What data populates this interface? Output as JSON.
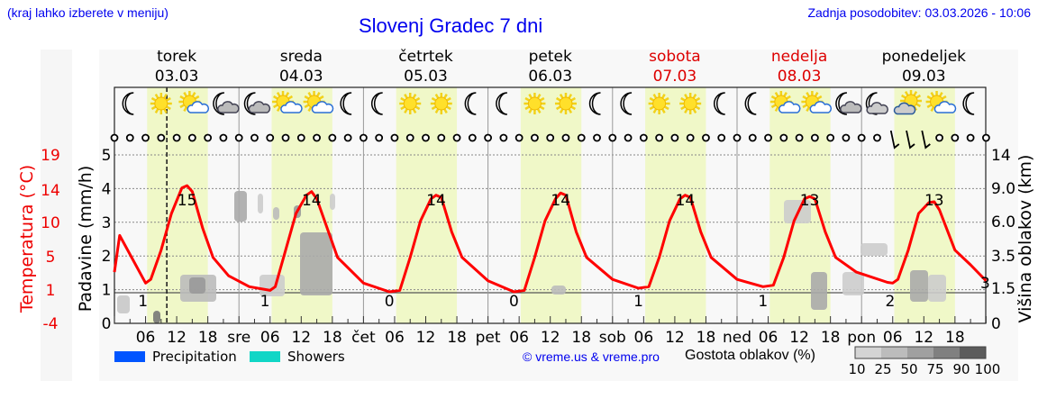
{
  "header": {
    "hint": "(kraj lahko izberete v meniju)",
    "title": "Slovenj Gradec 7 dni",
    "updated": "Zadnja posodobitev: 03.03.2026 - 10:06"
  },
  "days": [
    {
      "name": "torek",
      "date": "03.03",
      "weekend": false,
      "abbr": ""
    },
    {
      "name": "sreda",
      "date": "04.03",
      "weekend": false,
      "abbr": "sre"
    },
    {
      "name": "četrtek",
      "date": "05.03",
      "weekend": false,
      "abbr": "čet"
    },
    {
      "name": "petek",
      "date": "06.03",
      "weekend": false,
      "abbr": "pet"
    },
    {
      "name": "sobota",
      "date": "07.03",
      "weekend": true,
      "abbr": "sob"
    },
    {
      "name": "nedelja",
      "date": "08.03",
      "weekend": true,
      "abbr": "ned"
    },
    {
      "name": "ponedeljek",
      "date": "09.03",
      "weekend": false,
      "abbr": "pon"
    }
  ],
  "icons": [
    [
      "moon",
      "sun",
      "sun-cloud",
      "moon-cloud"
    ],
    [
      "moon-cloud",
      "sun-cloud",
      "sun-cloud",
      "moon"
    ],
    [
      "moon",
      "sun",
      "sun",
      "moon"
    ],
    [
      "moon",
      "sun",
      "sun",
      "moon"
    ],
    [
      "moon",
      "sun",
      "sun",
      "moon"
    ],
    [
      "moon",
      "sun-cloud",
      "sun-cloud",
      "moon-cloud"
    ],
    [
      "moon-cloud-heavy",
      "sun-cloud-heavy",
      "sun-cloud",
      "moon"
    ]
  ],
  "axes": {
    "left_temp_label": "Temperatura (°C)",
    "left_temp_ticks": [
      "19",
      "14",
      "10",
      "5",
      "1",
      "-4"
    ],
    "left_precip_label": "Padavine (mm/h)",
    "left_precip_ticks": [
      "0",
      "1",
      "2",
      "3",
      "4",
      "5"
    ],
    "right_label": "Višina oblakov (km)",
    "right_ticks": [
      "0",
      "1.5",
      "3.5",
      "6.0",
      "9.0",
      "14"
    ],
    "hour_ticks": [
      "06",
      "12",
      "18"
    ]
  },
  "legend": {
    "precipitation": "Precipitation",
    "showers": "Showers",
    "precip_color": "#0055ff",
    "showers_color": "#11d6c6",
    "copyright": "© vreme.us & vreme.pro",
    "cloud_density_label": "Gostota oblakov (%)",
    "cloud_density_ticks": [
      "10",
      "25",
      "50",
      "75",
      "90",
      "100"
    ]
  },
  "chart_data": {
    "type": "line",
    "title": "Slovenj Gradec 7 dni",
    "xlabel": "",
    "ylabel": "Temperatura (°C)",
    "ylim": [
      -4,
      19
    ],
    "secondary_axes": {
      "precipitation_mm_h": [
        0,
        5
      ],
      "cloud_height_km": [
        0,
        1.5,
        3.5,
        6.0,
        9.0,
        14
      ]
    },
    "now_marker": "03.03 10:06",
    "series": [
      {
        "name": "Temperatura",
        "color": "#ff0000",
        "points_hours_from_start": [
          [
            0,
            3
          ],
          [
            1,
            8
          ],
          [
            6,
            1.5
          ],
          [
            7,
            2
          ],
          [
            9,
            6
          ],
          [
            11,
            11
          ],
          [
            13,
            14.5
          ],
          [
            14,
            14.8
          ],
          [
            15,
            14
          ],
          [
            17,
            9
          ],
          [
            19,
            5
          ],
          [
            22,
            2.5
          ],
          [
            26,
            1
          ],
          [
            30,
            0.5
          ],
          [
            31,
            1
          ],
          [
            33,
            6
          ],
          [
            35,
            11
          ],
          [
            37,
            13.5
          ],
          [
            38,
            14
          ],
          [
            39,
            13
          ],
          [
            41,
            9
          ],
          [
            43,
            5
          ],
          [
            48,
            1.5
          ],
          [
            53,
            0.3
          ],
          [
            55,
            0.5
          ],
          [
            57,
            5
          ],
          [
            59,
            10
          ],
          [
            61,
            13
          ],
          [
            62,
            13.5
          ],
          [
            63,
            13.2
          ],
          [
            65,
            8.5
          ],
          [
            67,
            5
          ],
          [
            72,
            1.8
          ],
          [
            77,
            0.3
          ],
          [
            79,
            0.5
          ],
          [
            81,
            5
          ],
          [
            83,
            10
          ],
          [
            85,
            13
          ],
          [
            86,
            13.8
          ],
          [
            87,
            13.5
          ],
          [
            89,
            8.5
          ],
          [
            91,
            5
          ],
          [
            96,
            2
          ],
          [
            101,
            0.8
          ],
          [
            103,
            1
          ],
          [
            105,
            5
          ],
          [
            107,
            10
          ],
          [
            109,
            13
          ],
          [
            110,
            13.5
          ],
          [
            111,
            13.2
          ],
          [
            113,
            8.5
          ],
          [
            115,
            5
          ],
          [
            120,
            2
          ],
          [
            125,
            1
          ],
          [
            127,
            1.2
          ],
          [
            129,
            5
          ],
          [
            131,
            10
          ],
          [
            133,
            13
          ],
          [
            134,
            13.3
          ],
          [
            135,
            13
          ],
          [
            137,
            8.5
          ],
          [
            139,
            5
          ],
          [
            143,
            3
          ],
          [
            149,
            1.6
          ],
          [
            150,
            1.5
          ],
          [
            151,
            2
          ],
          [
            153,
            6
          ],
          [
            155,
            11
          ],
          [
            157,
            12.5
          ],
          [
            158,
            12.6
          ],
          [
            159,
            11.5
          ],
          [
            162,
            6
          ],
          [
            165,
            4
          ],
          [
            168,
            1.8
          ]
        ]
      }
    ],
    "daily_max": [
      15,
      14,
      14,
      14,
      14,
      13,
      13
    ],
    "daily_min": [
      1,
      1,
      0,
      0,
      1,
      1,
      2
    ],
    "end_value": 3,
    "precipitation": "none (0 mm/h)",
    "categories": [
      "03.03",
      "04.03",
      "05.03",
      "06.03",
      "07.03",
      "08.03",
      "09.03"
    ]
  }
}
